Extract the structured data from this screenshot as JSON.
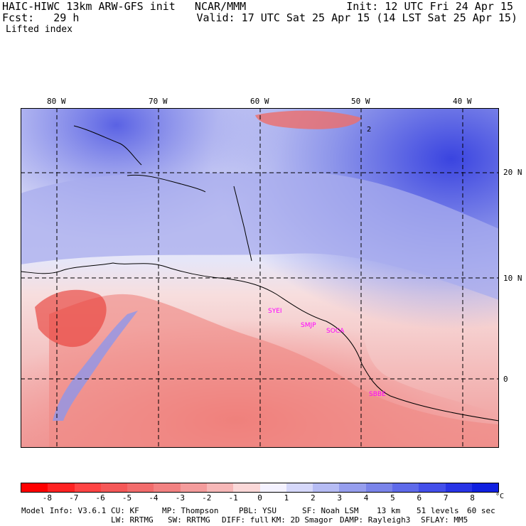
{
  "header": {
    "line1_left": "HAIC-HIWC 13km ARW-GFS init   NCAR/MMM",
    "line1_right": "Init: 12 UTC Fri 24 Apr 15",
    "line2_left": "Fcst:   29 h",
    "line2_right": "Valid: 17 UTC Sat 25 Apr 15 (14 LST Sat 25 Apr 15)",
    "field_name": "Lifted index"
  },
  "map": {
    "longitude_labels": [
      "80 W",
      "70 W",
      "60 W",
      "50 W",
      "40 W"
    ],
    "latitude_labels": [
      "20 N",
      "10 N",
      "0"
    ],
    "contour_label": "2",
    "stations": [
      "SYEI",
      "SMJP",
      "SOCA",
      "SBBE"
    ],
    "colors": {
      "strong_negative": "#e8403a",
      "negative": "#f28a88",
      "light_negative": "#f8c8c6",
      "neutral": "#f4f2f8",
      "light_positive": "#c6c8f0",
      "positive": "#8e96ea",
      "strong_positive": "#3a44e0"
    }
  },
  "legend": {
    "ticks": [
      "-8",
      "-7",
      "-6",
      "-5",
      "-4",
      "-3",
      "-2",
      "-1",
      "0",
      "1",
      "2",
      "3",
      "4",
      "5",
      "6",
      "7",
      "8"
    ],
    "unit": "°C",
    "colors": [
      "#ff0000",
      "#ff2222",
      "#ff4444",
      "#f55858",
      "#f26c6c",
      "#f38282",
      "#f49c9c",
      "#f7b8b8",
      "#fbd8d8",
      "#f4f2ff",
      "#d6d8fa",
      "#b6bcf4",
      "#969eee",
      "#7a84ea",
      "#5e6aea",
      "#434fea",
      "#2834e6",
      "#1020e0"
    ]
  },
  "footer": {
    "line1_model": "Model Info: V3.6.1",
    "line1_cu": "CU: KF",
    "line1_mp": "MP: Thompson",
    "line1_pbl": "PBL: YSU",
    "line1_sf": "SF: Noah LSM",
    "line1_res": "13 km",
    "line1_levels": "51 levels",
    "line1_dt": "60 sec",
    "line2_lw": "LW: RRTMG",
    "line2_sw": "SW: RRTMG",
    "line2_diff": "DIFF: full",
    "line2_km": "KM: 2D Smagor",
    "line2_damp": "DAMP: Rayleigh3",
    "line2_sflay": "SFLAY: MM5"
  }
}
